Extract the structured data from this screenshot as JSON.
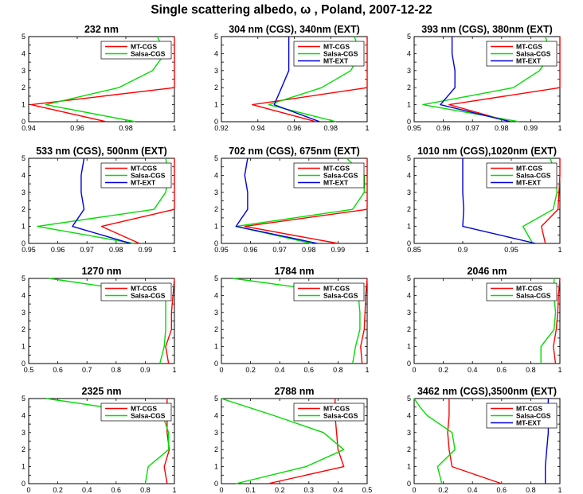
{
  "figure": {
    "title": "Single scattering albedo, ω ,  Poland, 2007-12-22"
  },
  "chart_data": [
    {
      "type": "line",
      "title": "232 nm",
      "xlim": [
        0.94,
        1
      ],
      "ylim": [
        0,
        5
      ],
      "xticks": [
        "0.94",
        "0.96",
        "0.98",
        "1"
      ],
      "yticks": [
        "0",
        "0.5",
        "1",
        "1.5",
        "2",
        "2.5",
        "3",
        "3.5",
        "4",
        "4.5",
        "5"
      ],
      "legend_position": "top-right",
      "series": [
        {
          "name": "MT-CGS",
          "color": "#ff0000",
          "x": [
            0.972,
            0.941,
            1.0,
            1.0,
            1.0
          ],
          "y": [
            0,
            1,
            2,
            4,
            5
          ]
        },
        {
          "name": "Salsa-CGS",
          "color": "#00dd00",
          "x": [
            0.984,
            0.947,
            0.977,
            0.991,
            0.996,
            0.993
          ],
          "y": [
            0,
            1,
            2,
            3,
            4,
            5
          ]
        }
      ]
    },
    {
      "type": "line",
      "title": "304 nm (CGS), 340nm (EXT)",
      "xlim": [
        0.92,
        1
      ],
      "ylim": [
        0,
        5
      ],
      "xticks": [
        "0.92",
        "0.94",
        "0.96",
        "0.98",
        "1"
      ],
      "yticks": [
        "0",
        "0.5",
        "1",
        "1.5",
        "2",
        "2.5",
        "3",
        "3.5",
        "4",
        "4.5",
        "5"
      ],
      "legend_position": "top-right",
      "series": [
        {
          "name": "MT-CGS",
          "color": "#ff0000",
          "x": [
            0.972,
            0.937,
            1.0,
            1.0,
            1.0
          ],
          "y": [
            0,
            1,
            2,
            4,
            5
          ]
        },
        {
          "name": "Salsa-CGS",
          "color": "#00dd00",
          "x": [
            0.983,
            0.946,
            0.975,
            0.991,
            0.996,
            0.993
          ],
          "y": [
            0,
            1,
            2,
            3,
            4,
            5
          ]
        },
        {
          "name": "MT-EXT",
          "color": "#0000dd",
          "x": [
            0.974,
            0.949,
            0.953,
            0.957,
            0.957,
            0.957
          ],
          "y": [
            0,
            1,
            2,
            3,
            4,
            5
          ]
        }
      ]
    },
    {
      "type": "line",
      "title": "393 nm (CGS), 380nm (EXT)",
      "xlim": [
        0.95,
        1
      ],
      "ylim": [
        0,
        5
      ],
      "xticks": [
        "0.95",
        "0.96",
        "0.97",
        "0.98",
        "0.99",
        "1"
      ],
      "yticks": [
        "0",
        "0.5",
        "1",
        "1.5",
        "2",
        "2.5",
        "3",
        "3.5",
        "4",
        "4.5",
        "5"
      ],
      "legend_position": "top-right",
      "series": [
        {
          "name": "MT-CGS",
          "color": "#ff0000",
          "x": [
            0.983,
            0.962,
            1.0,
            1.0,
            1.0
          ],
          "y": [
            0,
            1,
            2,
            4,
            5
          ]
        },
        {
          "name": "Salsa-CGS",
          "color": "#00dd00",
          "x": [
            0.986,
            0.953,
            0.984,
            0.993,
            0.997,
            0.995
          ],
          "y": [
            0,
            1,
            2,
            3,
            4,
            5
          ]
        },
        {
          "name": "MT-EXT",
          "color": "#0000dd",
          "x": [
            0.983,
            0.959,
            0.964,
            0.964,
            0.963,
            0.963
          ],
          "y": [
            0,
            1,
            2,
            3,
            4,
            5
          ]
        }
      ]
    },
    {
      "type": "line",
      "title": "533 nm (CGS), 500nm (EXT)",
      "xlim": [
        0.95,
        1
      ],
      "ylim": [
        0,
        5
      ],
      "xticks": [
        "0.95",
        "0.96",
        "0.97",
        "0.98",
        "0.99",
        "1"
      ],
      "yticks": [
        "0",
        "0.5",
        "1",
        "1.5",
        "2",
        "2.5",
        "3",
        "3.5",
        "4",
        "4.5",
        "5"
      ],
      "legend_position": "top-right",
      "series": [
        {
          "name": "MT-CGS",
          "color": "#ff0000",
          "x": [
            0.988,
            0.975,
            1.0,
            1.0,
            1.0
          ],
          "y": [
            0,
            1,
            2,
            4,
            5
          ]
        },
        {
          "name": "Salsa-CGS",
          "color": "#00dd00",
          "x": [
            0.986,
            0.953,
            0.993,
            0.997,
            0.998,
            0.997
          ],
          "y": [
            0,
            1,
            2,
            3,
            4,
            5
          ]
        },
        {
          "name": "MT-EXT",
          "color": "#0000dd",
          "x": [
            0.985,
            0.965,
            0.969,
            0.968,
            0.968,
            0.969
          ],
          "y": [
            0,
            1,
            2,
            3,
            4,
            5
          ]
        }
      ]
    },
    {
      "type": "line",
      "title": "702 nm (CGS), 675nm (EXT)",
      "xlim": [
        0.95,
        1
      ],
      "ylim": [
        0,
        5
      ],
      "xticks": [
        "0.95",
        "0.96",
        "0.97",
        "0.98",
        "0.99",
        "1"
      ],
      "yticks": [
        "0",
        "0.5",
        "1",
        "1.5",
        "2",
        "2.5",
        "3",
        "3.5",
        "4",
        "4.5",
        "5"
      ],
      "legend_position": "top-right",
      "series": [
        {
          "name": "MT-CGS",
          "color": "#ff0000",
          "x": [
            0.99,
            0.958,
            1.0,
            1.0,
            1.0
          ],
          "y": [
            0,
            1,
            2,
            4,
            5
          ]
        },
        {
          "name": "Salsa-CGS",
          "color": "#00dd00",
          "x": [
            0.981,
            0.955,
            0.995,
            0.999,
            0.999,
            0.993
          ],
          "y": [
            0,
            1,
            2,
            3,
            4,
            5
          ]
        },
        {
          "name": "MT-EXT",
          "color": "#0000dd",
          "x": [
            0.983,
            0.955,
            0.959,
            0.959,
            0.958,
            0.959
          ],
          "y": [
            0,
            1,
            2,
            3,
            4,
            5
          ]
        }
      ]
    },
    {
      "type": "line",
      "title": "1010 nm (CGS),1020nm (EXT)",
      "xlim": [
        0.85,
        1
      ],
      "ylim": [
        0,
        5
      ],
      "xticks": [
        "0.85",
        "0.9",
        "0.95",
        "1"
      ],
      "yticks": [
        "0",
        "0.5",
        "1",
        "1.5",
        "2",
        "2.5",
        "3",
        "3.5",
        "4",
        "4.5",
        "5"
      ],
      "legend_position": "top-right",
      "series": [
        {
          "name": "MT-CGS",
          "color": "#ff0000",
          "x": [
            0.985,
            0.981,
            0.998,
            1.0,
            1.0
          ],
          "y": [
            0,
            1,
            2,
            4,
            5
          ]
        },
        {
          "name": "Salsa-CGS",
          "color": "#00dd00",
          "x": [
            0.972,
            0.962,
            0.993,
            0.997,
            0.996,
            0.99
          ],
          "y": [
            0,
            1,
            2,
            3,
            4,
            5
          ]
        },
        {
          "name": "MT-EXT",
          "color": "#0000dd",
          "x": [
            0.975,
            0.9,
            0.901,
            0.9,
            0.9,
            0.9
          ],
          "y": [
            0,
            1,
            2,
            3,
            4,
            5
          ]
        }
      ]
    },
    {
      "type": "line",
      "title": "1270 nm",
      "xlim": [
        0.5,
        1
      ],
      "ylim": [
        0,
        5
      ],
      "xticks": [
        "0.5",
        "0.6",
        "0.7",
        "0.8",
        "0.9",
        "1"
      ],
      "yticks": [
        "0",
        "0.5",
        "1",
        "1.5",
        "2",
        "2.5",
        "3",
        "3.5",
        "4",
        "4.5",
        "5"
      ],
      "legend_position": "top-right",
      "series": [
        {
          "name": "MT-CGS",
          "color": "#ff0000",
          "x": [
            0.98,
            0.97,
            0.99,
            0.99,
            0.995,
            1.0
          ],
          "y": [
            0,
            1,
            2,
            3,
            4,
            5
          ]
        },
        {
          "name": "Salsa-CGS",
          "color": "#00dd00",
          "x": [
            0.95,
            0.965,
            0.97,
            0.97,
            0.97,
            0.57
          ],
          "y": [
            0,
            1,
            2,
            3,
            4,
            5
          ]
        }
      ]
    },
    {
      "type": "line",
      "title": "1784 nm",
      "xlim": [
        0,
        1
      ],
      "ylim": [
        0,
        5
      ],
      "xticks": [
        "0",
        "0.2",
        "0.4",
        "0.6",
        "0.8",
        "1"
      ],
      "yticks": [
        "0",
        "0.5",
        "1",
        "1.5",
        "2",
        "2.5",
        "3",
        "3.5",
        "4",
        "4.5",
        "5"
      ],
      "legend_position": "top-right",
      "series": [
        {
          "name": "MT-CGS",
          "color": "#ff0000",
          "x": [
            0.965,
            0.955,
            0.98,
            0.985,
            0.99,
            1.0
          ],
          "y": [
            0,
            1,
            2,
            3,
            4,
            5
          ]
        },
        {
          "name": "Salsa-CGS",
          "color": "#00dd00",
          "x": [
            0.9,
            0.92,
            0.95,
            0.95,
            0.94,
            0.08
          ],
          "y": [
            0,
            1,
            2,
            3,
            4,
            5
          ]
        }
      ]
    },
    {
      "type": "line",
      "title": "2046 nm",
      "xlim": [
        0,
        1
      ],
      "ylim": [
        0,
        5
      ],
      "xticks": [
        "0",
        "0.2",
        "0.4",
        "0.6",
        "0.8",
        "1"
      ],
      "yticks": [
        "0",
        "0.5",
        "1",
        "1.5",
        "2",
        "2.5",
        "3",
        "3.5",
        "4",
        "4.5",
        "5"
      ],
      "legend_position": "top-right",
      "series": [
        {
          "name": "MT-CGS",
          "color": "#ff0000",
          "x": [
            0.97,
            0.955,
            0.975,
            0.985,
            0.99,
            1.0
          ],
          "y": [
            0,
            1,
            2,
            3,
            4,
            5
          ]
        },
        {
          "name": "Salsa-CGS",
          "color": "#00dd00",
          "x": [
            0.87,
            0.87,
            0.96,
            0.97,
            0.96,
            0.96
          ],
          "y": [
            0,
            1,
            2,
            3,
            4,
            5
          ]
        }
      ]
    },
    {
      "type": "line",
      "title": "2325 nm",
      "xlim": [
        0,
        1
      ],
      "ylim": [
        0,
        5
      ],
      "xticks": [
        "0",
        "0.2",
        "0.4",
        "0.6",
        "0.8",
        "1"
      ],
      "yticks": [
        "0",
        "0.5",
        "1",
        "1.5",
        "2",
        "2.5",
        "3",
        "3.5",
        "4",
        "4.5",
        "5"
      ],
      "legend_position": "top-right",
      "series": [
        {
          "name": "MT-CGS",
          "color": "#ff0000",
          "x": [
            0.95,
            0.93,
            0.965,
            0.95,
            0.95,
            0.95
          ],
          "y": [
            0,
            1,
            2,
            3,
            4,
            5
          ]
        },
        {
          "name": "Salsa-CGS",
          "color": "#00dd00",
          "x": [
            0.8,
            0.82,
            0.96,
            0.96,
            0.92,
            0.12
          ],
          "y": [
            0,
            1,
            2,
            3,
            4,
            5
          ]
        }
      ]
    },
    {
      "type": "line",
      "title": "2788 nm",
      "xlim": [
        0,
        0.5
      ],
      "ylim": [
        0,
        5
      ],
      "xticks": [
        "0",
        "0.1",
        "0.2",
        "0.3",
        "0.4",
        "0.5"
      ],
      "yticks": [
        "0",
        "0.5",
        "1",
        "1.5",
        "2",
        "2.5",
        "3",
        "3.5",
        "4",
        "4.5",
        "5"
      ],
      "legend_position": "top-right",
      "series": [
        {
          "name": "MT-CGS",
          "color": "#ff0000",
          "x": [
            0.16,
            0.42,
            0.4,
            0.395,
            0.39,
            0.39
          ],
          "y": [
            0,
            1,
            2,
            3,
            4,
            5
          ]
        },
        {
          "name": "Salsa-CGS",
          "color": "#00dd00",
          "x": [
            0.05,
            0.29,
            0.42,
            0.35,
            0.18,
            0.0
          ],
          "y": [
            0,
            1,
            2,
            3,
            4,
            5
          ]
        }
      ]
    },
    {
      "type": "line",
      "title": "3462 nm (CGS),3500nm (EXT)",
      "xlim": [
        0,
        1
      ],
      "ylim": [
        0,
        5
      ],
      "xticks": [
        "0",
        "0.2",
        "0.4",
        "0.6",
        "0.8",
        "1"
      ],
      "yticks": [
        "0",
        "0.5",
        "1",
        "1.5",
        "2",
        "2.5",
        "3",
        "3.5",
        "4",
        "4.5",
        "5"
      ],
      "legend_position": "top-right",
      "series": [
        {
          "name": "MT-CGS",
          "color": "#ff0000",
          "x": [
            0.6,
            0.26,
            0.24,
            0.23,
            0.24,
            0.24
          ],
          "y": [
            0,
            1,
            2,
            3,
            4,
            5
          ]
        },
        {
          "name": "Salsa-CGS",
          "color": "#00dd00",
          "x": [
            0.19,
            0.16,
            0.28,
            0.26,
            0.09,
            0.04,
            0.0
          ],
          "y": [
            0,
            1,
            2,
            3,
            4,
            4.5,
            5
          ]
        },
        {
          "name": "MT-EXT",
          "color": "#0000dd",
          "x": [
            0.9,
            0.9,
            0.91,
            0.92,
            0.92,
            0.92
          ],
          "y": [
            0,
            1,
            2,
            3,
            4,
            5
          ]
        }
      ]
    }
  ]
}
